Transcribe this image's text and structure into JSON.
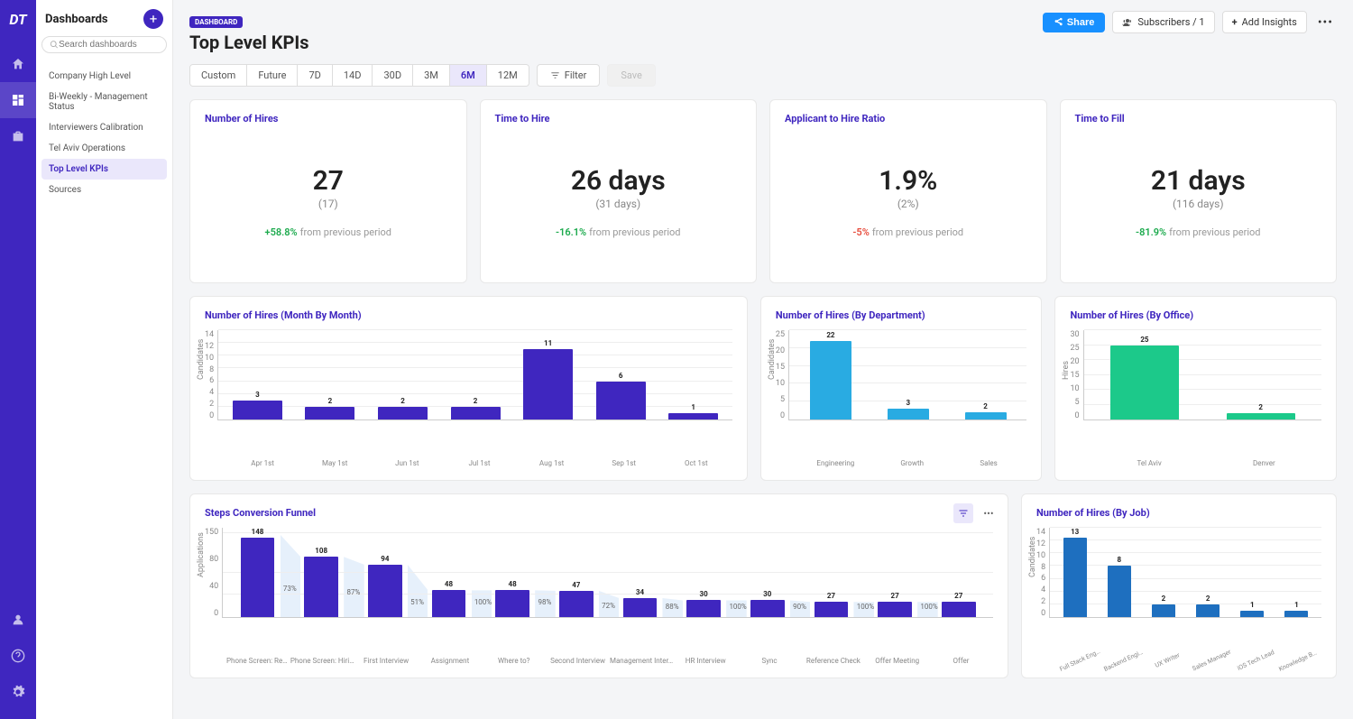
{
  "logo": "DT",
  "sidebar": {
    "title": "Dashboards",
    "search_placeholder": "Search dashboards",
    "items": [
      "Company High Level",
      "Bi-Weekly - Management Status",
      "Interviewers Calibration",
      "Tel Aviv Operations",
      "Top Level KPIs",
      "Sources"
    ],
    "selected": 4
  },
  "header": {
    "badge": "DASHBOARD",
    "title": "Top Level KPIs",
    "share": "Share",
    "subscribers": "Subscribers / 1",
    "add_insights": "Add Insights"
  },
  "toolbar": {
    "ranges": [
      "Custom",
      "Future",
      "7D",
      "14D",
      "30D",
      "3M",
      "6M",
      "12M"
    ],
    "selected": 6,
    "filter": "Filter",
    "save": "Save"
  },
  "kpis": [
    {
      "title": "Number of Hires",
      "value": "27",
      "sub": "(17)",
      "delta": "+58.8%",
      "delta_color": "g",
      "delta_label": "from previous period"
    },
    {
      "title": "Time to Hire",
      "value": "26 days",
      "sub": "(31 days)",
      "delta": "-16.1%",
      "delta_color": "g",
      "delta_label": "from previous period"
    },
    {
      "title": "Applicant to Hire Ratio",
      "value": "1.9%",
      "sub": "(2%)",
      "delta": "-5%",
      "delta_color": "r",
      "delta_label": "from previous period"
    },
    {
      "title": "Time to Fill",
      "value": "21 days",
      "sub": "(116 days)",
      "delta": "-81.9%",
      "delta_color": "g",
      "delta_label": "from previous period"
    }
  ],
  "chart_month": {
    "title": "Number of Hires (Month By Month)",
    "ylabel": "Candidates",
    "yticks": [
      0,
      2,
      4,
      6,
      8,
      10,
      12,
      14
    ],
    "ymax": 14,
    "color": "#3f26bf",
    "categories": [
      "Apr 1st",
      "May 1st",
      "Jun 1st",
      "Jul 1st",
      "Aug 1st",
      "Sep 1st",
      "Oct 1st"
    ],
    "values": [
      3,
      2,
      2,
      2,
      11,
      6,
      1
    ]
  },
  "chart_dept": {
    "title": "Number of Hires (By Department)",
    "ylabel": "Candidates",
    "yticks": [
      0,
      5,
      10,
      15,
      20,
      25
    ],
    "ymax": 25,
    "color": "#29abe2",
    "categories": [
      "Engineering",
      "Growth",
      "Sales"
    ],
    "values": [
      22,
      3,
      2
    ]
  },
  "chart_office": {
    "title": "Number of Hires (By Office)",
    "ylabel": "Hires",
    "yticks": [
      0,
      5,
      10,
      15,
      20,
      25,
      30
    ],
    "ymax": 30,
    "color": "#1cc98a",
    "categories": [
      "Tel Aviv",
      "Denver"
    ],
    "values": [
      25,
      2
    ]
  },
  "chart_funnel": {
    "title": "Steps Conversion Funnel",
    "ylabel": "Applications",
    "yticks": [
      0,
      40,
      80,
      150
    ],
    "ymax": 160,
    "color": "#3f26bf",
    "categories": [
      "Phone Screen: Rec...",
      "Phone Screen: Hiri...",
      "First Interview",
      "Assignment",
      "Where to?",
      "Second Interview",
      "Management Inter...",
      "HR Interview",
      "Sync",
      "Reference Check",
      "Offer Meeting",
      "Offer"
    ],
    "values": [
      148,
      108,
      94,
      48,
      48,
      47,
      34,
      30,
      30,
      27,
      27,
      27
    ],
    "percents": [
      "73%",
      "87%",
      "51%",
      "100%",
      "98%",
      "72%",
      "88%",
      "100%",
      "90%",
      "100%",
      "100%"
    ]
  },
  "chart_job": {
    "title": "Number of Hires (By Job)",
    "ylabel": "Candidates",
    "yticks": [
      0,
      2,
      4,
      6,
      8,
      10,
      12,
      14
    ],
    "ymax": 14,
    "color": "#1e6fbf",
    "categories": [
      "Full Stack Engineer",
      "Backend Engineer",
      "UX Writer",
      "Sales Manager",
      "iOS Tech Lead",
      "Knowledge Base..."
    ],
    "values": [
      13,
      8,
      2,
      2,
      1,
      1
    ]
  }
}
